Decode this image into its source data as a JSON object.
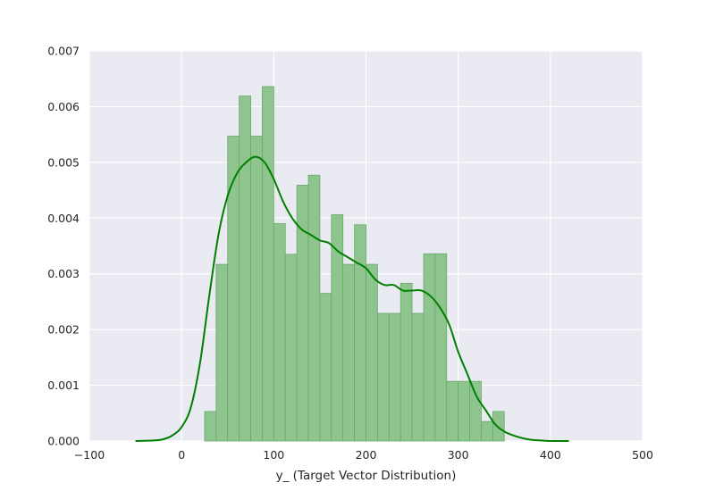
{
  "chart_data": {
    "type": "bar",
    "xlabel": "y_ (Target Vector Distribution)",
    "ylabel": "",
    "xlim": [
      -100,
      500
    ],
    "ylim": [
      0,
      0.007
    ],
    "grid": true,
    "x_ticks": [
      -100,
      0,
      100,
      200,
      300,
      400,
      500
    ],
    "x_tick_labels": [
      "−100",
      "0",
      "100",
      "200",
      "300",
      "400",
      "500"
    ],
    "y_ticks": [
      0,
      0.001,
      0.002,
      0.003,
      0.004,
      0.005,
      0.006,
      0.007
    ],
    "y_tick_labels": [
      "0.000",
      "0.001",
      "0.002",
      "0.003",
      "0.004",
      "0.005",
      "0.006",
      "0.007"
    ],
    "colors": {
      "background": "#eaeaf2",
      "grid": "#ffffff",
      "bar_fill": "#8ec58e",
      "bar_edge": "#6aa86a",
      "kde_line": "#008000"
    },
    "histogram": {
      "bin_edges": [
        25,
        37.5,
        50,
        62.5,
        75,
        87.5,
        100,
        112.5,
        125,
        137.5,
        150,
        162.5,
        175,
        187.5,
        200,
        212.5,
        225,
        237.5,
        250,
        262.5,
        275,
        287.5,
        300,
        312.5,
        325,
        337.5,
        350
      ],
      "densities": [
        0.00053,
        0.00317,
        0.00547,
        0.00619,
        0.00547,
        0.00636,
        0.0039,
        0.00335,
        0.00459,
        0.00477,
        0.00265,
        0.00406,
        0.00317,
        0.00388,
        0.00317,
        0.00229,
        0.00229,
        0.00283,
        0.00229,
        0.00336,
        0.00336,
        0.00107,
        0.00107,
        0.00107,
        0.00035,
        0.00053
      ]
    },
    "kde": {
      "x": [
        -50,
        -30,
        -20,
        -10,
        0,
        10,
        20,
        30,
        40,
        50,
        60,
        70,
        80,
        90,
        100,
        110,
        120,
        130,
        140,
        150,
        160,
        170,
        180,
        190,
        200,
        210,
        220,
        230,
        240,
        250,
        260,
        270,
        280,
        290,
        300,
        310,
        320,
        330,
        340,
        350,
        360,
        370,
        380,
        390,
        400,
        420
      ],
      "y": [
        0,
        1e-05,
        3e-05,
        0.0001,
        0.00025,
        0.0006,
        0.0014,
        0.0026,
        0.0037,
        0.0044,
        0.0048,
        0.005,
        0.0051,
        0.005,
        0.0047,
        0.0043,
        0.004,
        0.0038,
        0.0037,
        0.0036,
        0.00355,
        0.0034,
        0.0033,
        0.0032,
        0.0031,
        0.0029,
        0.0028,
        0.0028,
        0.0027,
        0.0027,
        0.0027,
        0.0026,
        0.0024,
        0.0021,
        0.0016,
        0.0012,
        0.0008,
        0.00055,
        0.0003,
        0.00017,
        0.0001,
        5e-05,
        2e-05,
        1e-05,
        0,
        0
      ]
    }
  }
}
